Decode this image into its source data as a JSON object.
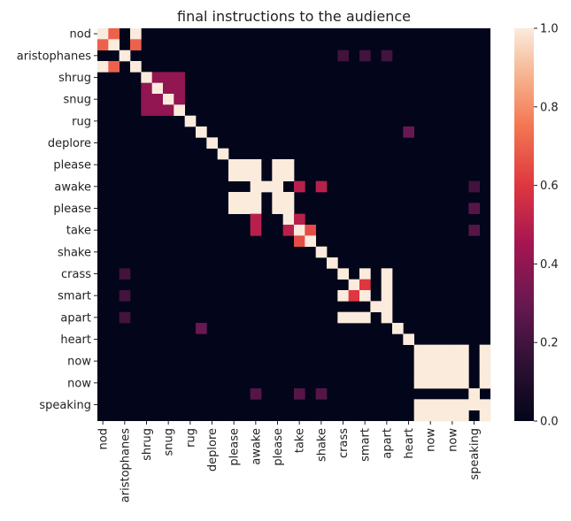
{
  "chart_data": {
    "type": "heatmap",
    "title": "final instructions to the audience",
    "xlabel": "",
    "ylabel": "",
    "labels": [
      "nod",
      "aristophanes",
      "shrug",
      "snug",
      "rug",
      "deplore",
      "please",
      "awake",
      "please",
      "take",
      "shake",
      "crass",
      "smart",
      "apart",
      "heart",
      "now",
      "now",
      "speaking"
    ],
    "x_tick_labels_shown": [
      "nod",
      "aristophanes",
      "shrug",
      "snug",
      "rug",
      "deplore",
      "please",
      "awake",
      "please",
      "take",
      "shake",
      "crass",
      "smart",
      "apart",
      "heart",
      "now",
      "now",
      "speaking"
    ],
    "y_tick_labels_shown": [
      "nod",
      "aristophanes",
      "shrug",
      "snug",
      "rug",
      "deplore",
      "please",
      "awake",
      "please",
      "take",
      "shake",
      "crass",
      "smart",
      "apart",
      "heart",
      "now",
      "now",
      "speaking"
    ],
    "colorbar": {
      "min": 0.0,
      "max": 1.0,
      "ticks": [
        "0.0",
        "0.2",
        "0.4",
        "0.6",
        "0.8",
        "1.0"
      ]
    },
    "colormap": "rocket",
    "grid": false,
    "rows": 36,
    "cols": 36,
    "default_value": 0,
    "cells": [
      [
        0,
        0,
        1.0
      ],
      [
        0,
        1,
        0.7
      ],
      [
        0,
        3,
        1.0
      ],
      [
        1,
        0,
        0.7
      ],
      [
        1,
        1,
        1.0
      ],
      [
        1,
        3,
        0.7
      ],
      [
        2,
        2,
        1.0
      ],
      [
        2,
        22,
        0.2
      ],
      [
        2,
        24,
        0.2
      ],
      [
        2,
        26,
        0.2
      ],
      [
        3,
        0,
        1.0
      ],
      [
        3,
        1,
        0.7
      ],
      [
        3,
        3,
        1.0
      ],
      [
        4,
        4,
        1.0
      ],
      [
        4,
        5,
        0.4
      ],
      [
        4,
        6,
        0.4
      ],
      [
        4,
        7,
        0.4
      ],
      [
        5,
        4,
        0.4
      ],
      [
        5,
        5,
        1.0
      ],
      [
        5,
        6,
        0.4
      ],
      [
        5,
        7,
        0.4
      ],
      [
        6,
        4,
        0.4
      ],
      [
        6,
        5,
        0.4
      ],
      [
        6,
        6,
        1.0
      ],
      [
        6,
        7,
        0.4
      ],
      [
        7,
        4,
        0.4
      ],
      [
        7,
        5,
        0.4
      ],
      [
        7,
        6,
        0.4
      ],
      [
        7,
        7,
        1.0
      ],
      [
        8,
        8,
        1.0
      ],
      [
        9,
        9,
        1.0
      ],
      [
        9,
        28,
        0.3
      ],
      [
        10,
        10,
        1.0
      ],
      [
        11,
        11,
        1.0
      ],
      [
        12,
        12,
        1.0
      ],
      [
        12,
        13,
        1.0
      ],
      [
        12,
        14,
        1.0
      ],
      [
        12,
        16,
        1.0
      ],
      [
        12,
        17,
        1.0
      ],
      [
        13,
        12,
        1.0
      ],
      [
        13,
        13,
        1.0
      ],
      [
        13,
        14,
        1.0
      ],
      [
        13,
        16,
        1.0
      ],
      [
        13,
        17,
        1.0
      ],
      [
        14,
        14,
        1.0
      ],
      [
        14,
        15,
        1.0
      ],
      [
        14,
        16,
        1.0
      ],
      [
        14,
        18,
        0.5
      ],
      [
        14,
        20,
        0.5
      ],
      [
        14,
        34,
        0.2
      ],
      [
        15,
        12,
        1.0
      ],
      [
        15,
        13,
        1.0
      ],
      [
        15,
        14,
        1.0
      ],
      [
        15,
        16,
        1.0
      ],
      [
        15,
        17,
        1.0
      ],
      [
        16,
        12,
        1.0
      ],
      [
        16,
        13,
        1.0
      ],
      [
        16,
        14,
        1.0
      ],
      [
        16,
        16,
        1.0
      ],
      [
        16,
        17,
        1.0
      ],
      [
        16,
        34,
        0.25
      ],
      [
        17,
        14,
        0.5
      ],
      [
        17,
        17,
        1.0
      ],
      [
        17,
        18,
        0.5
      ],
      [
        18,
        14,
        0.5
      ],
      [
        18,
        17,
        0.5
      ],
      [
        18,
        18,
        1.0
      ],
      [
        18,
        19,
        0.65
      ],
      [
        18,
        34,
        0.25
      ],
      [
        19,
        18,
        0.65
      ],
      [
        19,
        19,
        1.0
      ],
      [
        20,
        20,
        1.0
      ],
      [
        21,
        21,
        1.0
      ],
      [
        22,
        2,
        0.2
      ],
      [
        22,
        22,
        1.0
      ],
      [
        22,
        24,
        1.0
      ],
      [
        22,
        26,
        1.0
      ],
      [
        23,
        23,
        1.0
      ],
      [
        23,
        24,
        0.6
      ],
      [
        23,
        26,
        1.0
      ],
      [
        24,
        2,
        0.2
      ],
      [
        24,
        22,
        1.0
      ],
      [
        24,
        23,
        0.6
      ],
      [
        24,
        24,
        1.0
      ],
      [
        24,
        26,
        1.0
      ],
      [
        25,
        25,
        1.0
      ],
      [
        25,
        26,
        1.0
      ],
      [
        26,
        2,
        0.2
      ],
      [
        26,
        22,
        1.0
      ],
      [
        26,
        23,
        1.0
      ],
      [
        26,
        24,
        1.0
      ],
      [
        26,
        26,
        1.0
      ],
      [
        27,
        9,
        0.3
      ],
      [
        27,
        27,
        1.0
      ],
      [
        28,
        28,
        1.0
      ],
      [
        29,
        29,
        1.0
      ],
      [
        29,
        30,
        1.0
      ],
      [
        29,
        31,
        1.0
      ],
      [
        29,
        32,
        1.0
      ],
      [
        29,
        33,
        1.0
      ],
      [
        29,
        35,
        1.0
      ],
      [
        30,
        29,
        1.0
      ],
      [
        30,
        30,
        1.0
      ],
      [
        30,
        31,
        1.0
      ],
      [
        30,
        32,
        1.0
      ],
      [
        30,
        33,
        1.0
      ],
      [
        30,
        35,
        1.0
      ],
      [
        31,
        29,
        1.0
      ],
      [
        31,
        30,
        1.0
      ],
      [
        31,
        31,
        1.0
      ],
      [
        31,
        32,
        1.0
      ],
      [
        31,
        33,
        1.0
      ],
      [
        31,
        35,
        1.0
      ],
      [
        32,
        29,
        1.0
      ],
      [
        32,
        30,
        1.0
      ],
      [
        32,
        31,
        1.0
      ],
      [
        32,
        32,
        1.0
      ],
      [
        32,
        33,
        1.0
      ],
      [
        32,
        35,
        1.0
      ],
      [
        33,
        14,
        0.25
      ],
      [
        33,
        18,
        0.25
      ],
      [
        33,
        20,
        0.25
      ],
      [
        33,
        34,
        1.0
      ],
      [
        34,
        29,
        1.0
      ],
      [
        34,
        30,
        1.0
      ],
      [
        34,
        31,
        1.0
      ],
      [
        34,
        32,
        1.0
      ],
      [
        34,
        33,
        1.0
      ],
      [
        34,
        34,
        1.0
      ],
      [
        34,
        35,
        1.0
      ],
      [
        35,
        29,
        1.0
      ],
      [
        35,
        30,
        1.0
      ],
      [
        35,
        31,
        1.0
      ],
      [
        35,
        32,
        1.0
      ],
      [
        35,
        33,
        1.0
      ],
      [
        35,
        35,
        1.0
      ]
    ]
  }
}
